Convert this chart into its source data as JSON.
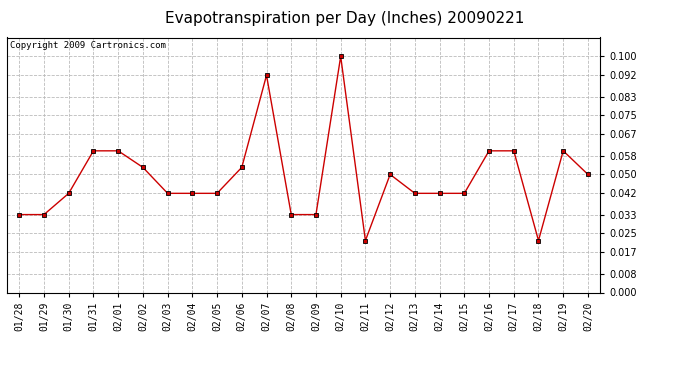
{
  "title": "Evapotranspiration per Day (Inches) 20090221",
  "copyright_text": "Copyright 2009 Cartronics.com",
  "dates": [
    "01/28",
    "01/29",
    "01/30",
    "01/31",
    "02/01",
    "02/02",
    "02/03",
    "02/04",
    "02/05",
    "02/06",
    "02/07",
    "02/08",
    "02/09",
    "02/10",
    "02/11",
    "02/12",
    "02/13",
    "02/14",
    "02/15",
    "02/16",
    "02/17",
    "02/18",
    "02/19",
    "02/20"
  ],
  "values": [
    0.033,
    0.033,
    0.042,
    0.06,
    0.06,
    0.053,
    0.042,
    0.042,
    0.042,
    0.053,
    0.092,
    0.033,
    0.033,
    0.1,
    0.022,
    0.05,
    0.042,
    0.042,
    0.042,
    0.06,
    0.06,
    0.022,
    0.06,
    0.05
  ],
  "ylim": [
    0.0,
    0.108
  ],
  "yticks": [
    0.0,
    0.008,
    0.017,
    0.025,
    0.033,
    0.042,
    0.05,
    0.058,
    0.067,
    0.075,
    0.083,
    0.092,
    0.1
  ],
  "line_color": "#cc0000",
  "marker_color": "black",
  "marker_face": "#cc0000",
  "bg_color": "#ffffff",
  "grid_color": "#bbbbbb",
  "title_fontsize": 11,
  "copyright_fontsize": 6.5,
  "tick_fontsize": 7,
  "xtick_fontsize": 7
}
